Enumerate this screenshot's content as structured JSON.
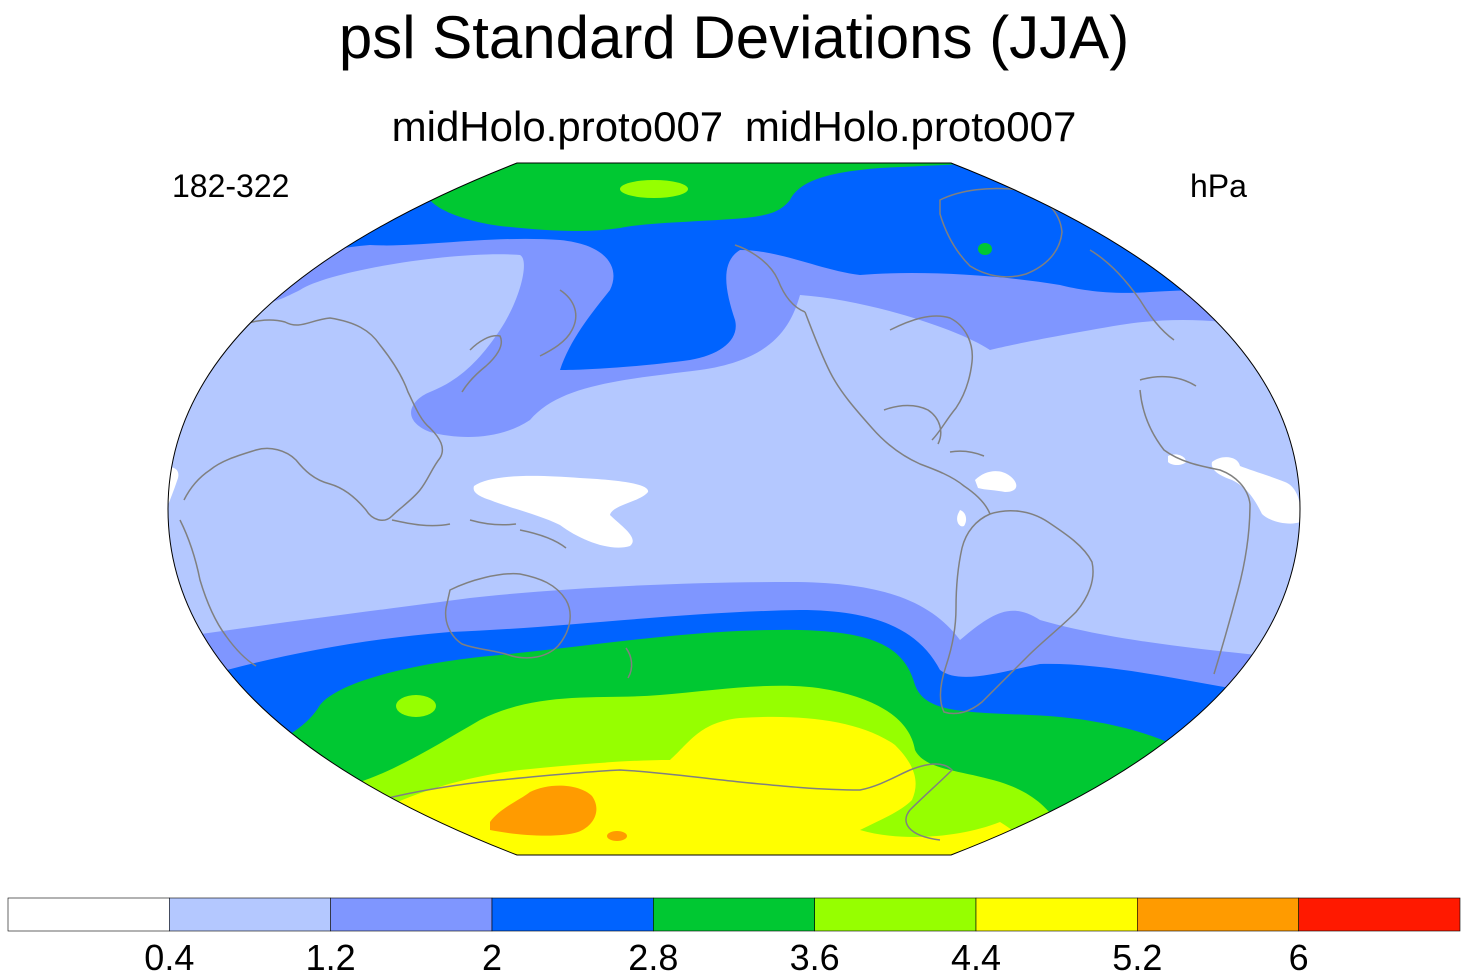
{
  "title": "psl Standard Deviations (JJA)",
  "subtitle": "midHolo.proto007  midHolo.proto007",
  "left_label": "182-322",
  "right_label": "hPa",
  "colorbar": {
    "colors": [
      "#ffffff",
      "#b4c8ff",
      "#7f96ff",
      "#0063ff",
      "#00c832",
      "#96ff00",
      "#ffff00",
      "#ff9b00",
      "#ff1900"
    ],
    "labels": [
      "0.4",
      "1.2",
      "2",
      "2.8",
      "3.6",
      "4.4",
      "5.2",
      "6"
    ]
  },
  "colors": {
    "outline": "#000000",
    "coast": "#808080"
  }
}
